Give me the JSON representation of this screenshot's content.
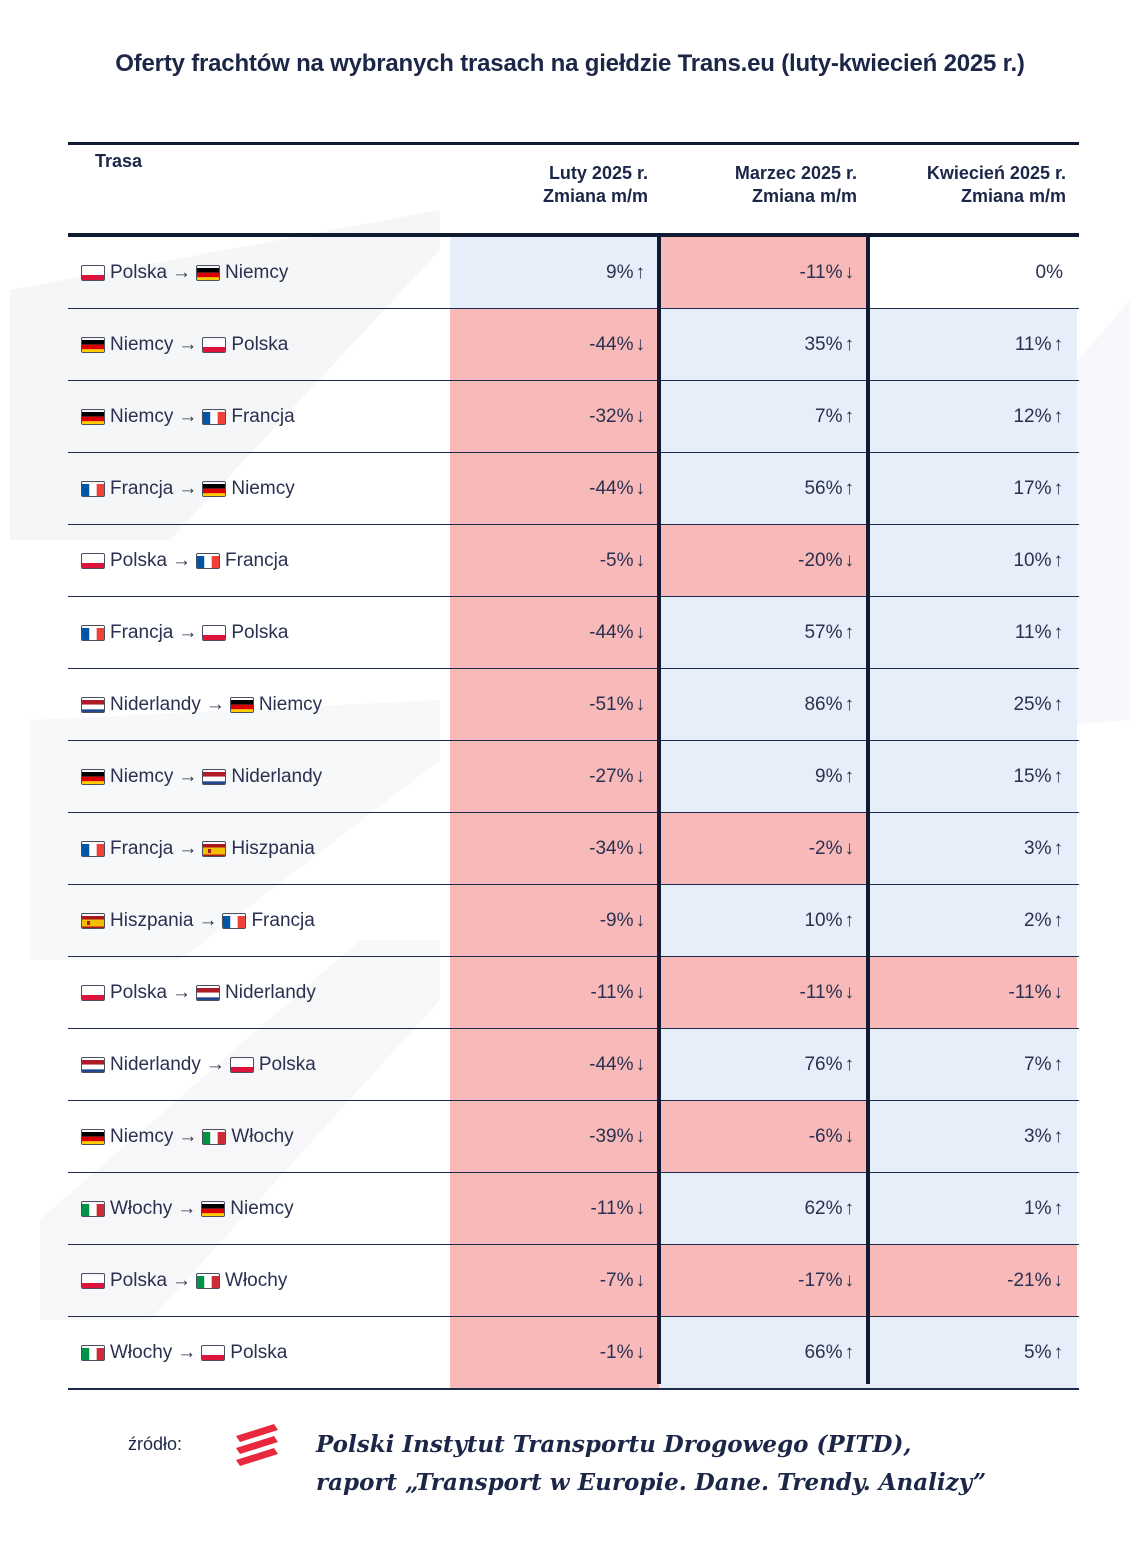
{
  "title": "Oferty frachtów na wybranych trasach na giełdzie Trans.eu (luty-kwiecień 2025 r.)",
  "header": {
    "trasa": "Trasa",
    "col1_line1": "Luty 2025 r.",
    "col1_line2": "Zmiana m/m",
    "col2_line1": "Marzec 2025 r.",
    "col2_line2": "Zmiana m/m",
    "col3_line1": "Kwiecień 2025 r.",
    "col3_line2": "Zmiana m/m"
  },
  "arrow": "→",
  "rows": [
    {
      "from": "Polska",
      "from_flag": "pl",
      "to": "Niemcy",
      "to_flag": "de",
      "feb": "9%",
      "feb_dir": "↑",
      "mar": "-11%",
      "mar_dir": "↓",
      "apr": "0%",
      "apr_dir": ""
    },
    {
      "from": "Niemcy",
      "from_flag": "de",
      "to": "Polska",
      "to_flag": "pl",
      "feb": "-44%",
      "feb_dir": "↓",
      "mar": "35%",
      "mar_dir": "↑",
      "apr": "11%",
      "apr_dir": "↑"
    },
    {
      "from": "Niemcy",
      "from_flag": "de",
      "to": "Francja",
      "to_flag": "fr",
      "feb": "-32%",
      "feb_dir": "↓",
      "mar": "7%",
      "mar_dir": "↑",
      "apr": "12%",
      "apr_dir": "↑"
    },
    {
      "from": "Francja",
      "from_flag": "fr",
      "to": "Niemcy",
      "to_flag": "de",
      "feb": "-44%",
      "feb_dir": "↓",
      "mar": "56%",
      "mar_dir": "↑",
      "apr": "17%",
      "apr_dir": "↑"
    },
    {
      "from": "Polska",
      "from_flag": "pl",
      "to": "Francja",
      "to_flag": "fr",
      "feb": "-5%",
      "feb_dir": "↓",
      "mar": "-20%",
      "mar_dir": "↓",
      "apr": "10%",
      "apr_dir": "↑"
    },
    {
      "from": "Francja",
      "from_flag": "fr",
      "to": "Polska",
      "to_flag": "pl",
      "feb": "-44%",
      "feb_dir": "↓",
      "mar": "57%",
      "mar_dir": "↑",
      "apr": "11%",
      "apr_dir": "↑"
    },
    {
      "from": "Niderlandy",
      "from_flag": "nl",
      "to": "Niemcy",
      "to_flag": "de",
      "feb": "-51%",
      "feb_dir": "↓",
      "mar": "86%",
      "mar_dir": "↑",
      "apr": "25%",
      "apr_dir": "↑"
    },
    {
      "from": "Niemcy",
      "from_flag": "de",
      "to": "Niderlandy",
      "to_flag": "nl",
      "feb": "-27%",
      "feb_dir": "↓",
      "mar": "9%",
      "mar_dir": "↑",
      "apr": "15%",
      "apr_dir": "↑"
    },
    {
      "from": "Francja",
      "from_flag": "fr",
      "to": "Hiszpania",
      "to_flag": "es",
      "feb": "-34%",
      "feb_dir": "↓",
      "mar": "-2%",
      "mar_dir": "↓",
      "apr": "3%",
      "apr_dir": "↑"
    },
    {
      "from": "Hiszpania",
      "from_flag": "es",
      "to": "Francja",
      "to_flag": "fr",
      "feb": "-9%",
      "feb_dir": "↓",
      "mar": "10%",
      "mar_dir": "↑",
      "apr": "2%",
      "apr_dir": "↑"
    },
    {
      "from": "Polska",
      "from_flag": "pl",
      "to": "Niderlandy",
      "to_flag": "nl",
      "feb": "-11%",
      "feb_dir": "↓",
      "mar": "-11%",
      "mar_dir": "↓",
      "apr": "-11%",
      "apr_dir": "↓"
    },
    {
      "from": "Niderlandy",
      "from_flag": "nl",
      "to": "Polska",
      "to_flag": "pl",
      "feb": "-44%",
      "feb_dir": "↓",
      "mar": "76%",
      "mar_dir": "↑",
      "apr": "7%",
      "apr_dir": "↑"
    },
    {
      "from": "Niemcy",
      "from_flag": "de",
      "to": "Włochy",
      "to_flag": "it",
      "feb": "-39%",
      "feb_dir": "↓",
      "mar": "-6%",
      "mar_dir": "↓",
      "apr": "3%",
      "apr_dir": "↑"
    },
    {
      "from": "Włochy",
      "from_flag": "it",
      "to": "Niemcy",
      "to_flag": "de",
      "feb": "-11%",
      "feb_dir": "↓",
      "mar": "62%",
      "mar_dir": "↑",
      "apr": "1%",
      "apr_dir": "↑"
    },
    {
      "from": "Polska",
      "from_flag": "pl",
      "to": "Włochy",
      "to_flag": "it",
      "feb": "-7%",
      "feb_dir": "↓",
      "mar": "-17%",
      "mar_dir": "↓",
      "apr": "-21%",
      "apr_dir": "↓"
    },
    {
      "from": "Włochy",
      "from_flag": "it",
      "to": "Polska",
      "to_flag": "pl",
      "feb": "-1%",
      "feb_dir": "↓",
      "mar": "66%",
      "mar_dir": "↑",
      "apr": "5%",
      "apr_dir": "↑"
    }
  ],
  "source": {
    "label": "źródło:",
    "line1": "Polski Instytut Transportu Drogowego (PITD),",
    "line2": "raport „Transport w Europie. Dane. Trendy. Analizy”"
  },
  "colors": {
    "negative_cell": "#f8b9b9",
    "positive_cell": "#e6eef9",
    "rule": "#111a33",
    "logo": "#e8283c"
  },
  "flag_icons": {
    "pl": "poland-flag-icon",
    "de": "germany-flag-icon",
    "fr": "france-flag-icon",
    "nl": "netherlands-flag-icon",
    "es": "spain-flag-icon",
    "it": "italy-flag-icon"
  }
}
